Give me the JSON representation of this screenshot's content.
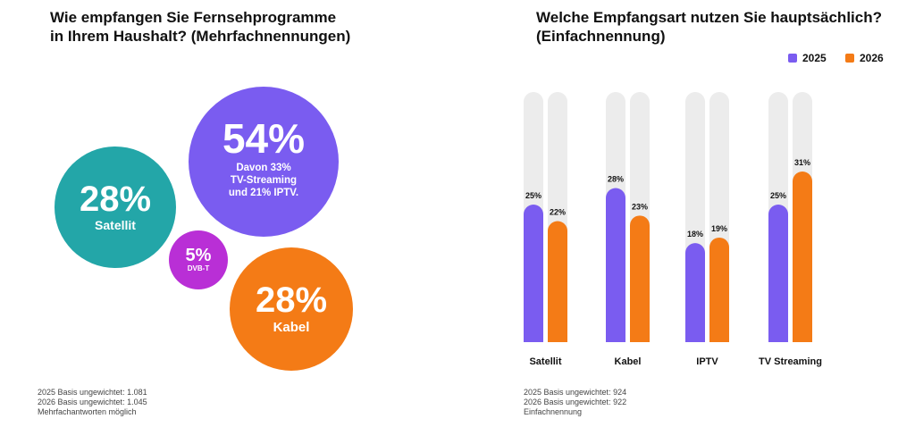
{
  "colors": {
    "purple": "#7a5cf0",
    "teal": "#23a6a8",
    "magenta": "#b92fd6",
    "orange": "#f47b16",
    "track": "#ececec"
  },
  "left": {
    "title_line1": "Wie empfangen Sie Fernsehprogramme",
    "title_line2": "in Ihrem Haushalt? (Mehrfachnennungen)",
    "bubbles": {
      "tv": {
        "value": "54%",
        "line1": "Davon 33%",
        "line2": "TV-Streaming",
        "line3": "und 21% IPTV."
      },
      "satellit": {
        "value": "28%",
        "label": "Satellit"
      },
      "dvbt": {
        "value": "5%",
        "label": "DVB-T"
      },
      "kabel": {
        "value": "28%",
        "label": "Kabel"
      }
    },
    "footnote": [
      "2025 Basis ungewichtet: 1.081",
      "2026 Basis ungewichtet: 1.045",
      "Mehrfachantworten möglich"
    ]
  },
  "right": {
    "title_line1": "Welche Empfangsart nutzen Sie hauptsächlich?",
    "title_line2": "(Einfachnennung)",
    "footnote": [
      "2025 Basis ungewichtet: 924",
      "2026 Basis ungewichtet: 922",
      "Einfachnennung"
    ]
  },
  "chart_data": [
    {
      "type": "bar",
      "title": "Welche Empfangsart nutzen Sie hauptsächlich? (Einfachnennung)",
      "categories": [
        "Satellit",
        "Kabel",
        "IPTV",
        "TV Streaming"
      ],
      "series": [
        {
          "name": "2025",
          "values": [
            25,
            28,
            18,
            25
          ],
          "labels": [
            "25%",
            "28%",
            "18%",
            "25%"
          ],
          "color": "#7a5cf0"
        },
        {
          "name": "2026",
          "values": [
            22,
            23,
            19,
            31
          ],
          "labels": [
            "22%",
            "23%",
            "19%",
            "31%"
          ],
          "color": "#f47b16"
        }
      ],
      "ylim": [
        0,
        100
      ],
      "grid": false,
      "legend": "top-right"
    }
  ]
}
